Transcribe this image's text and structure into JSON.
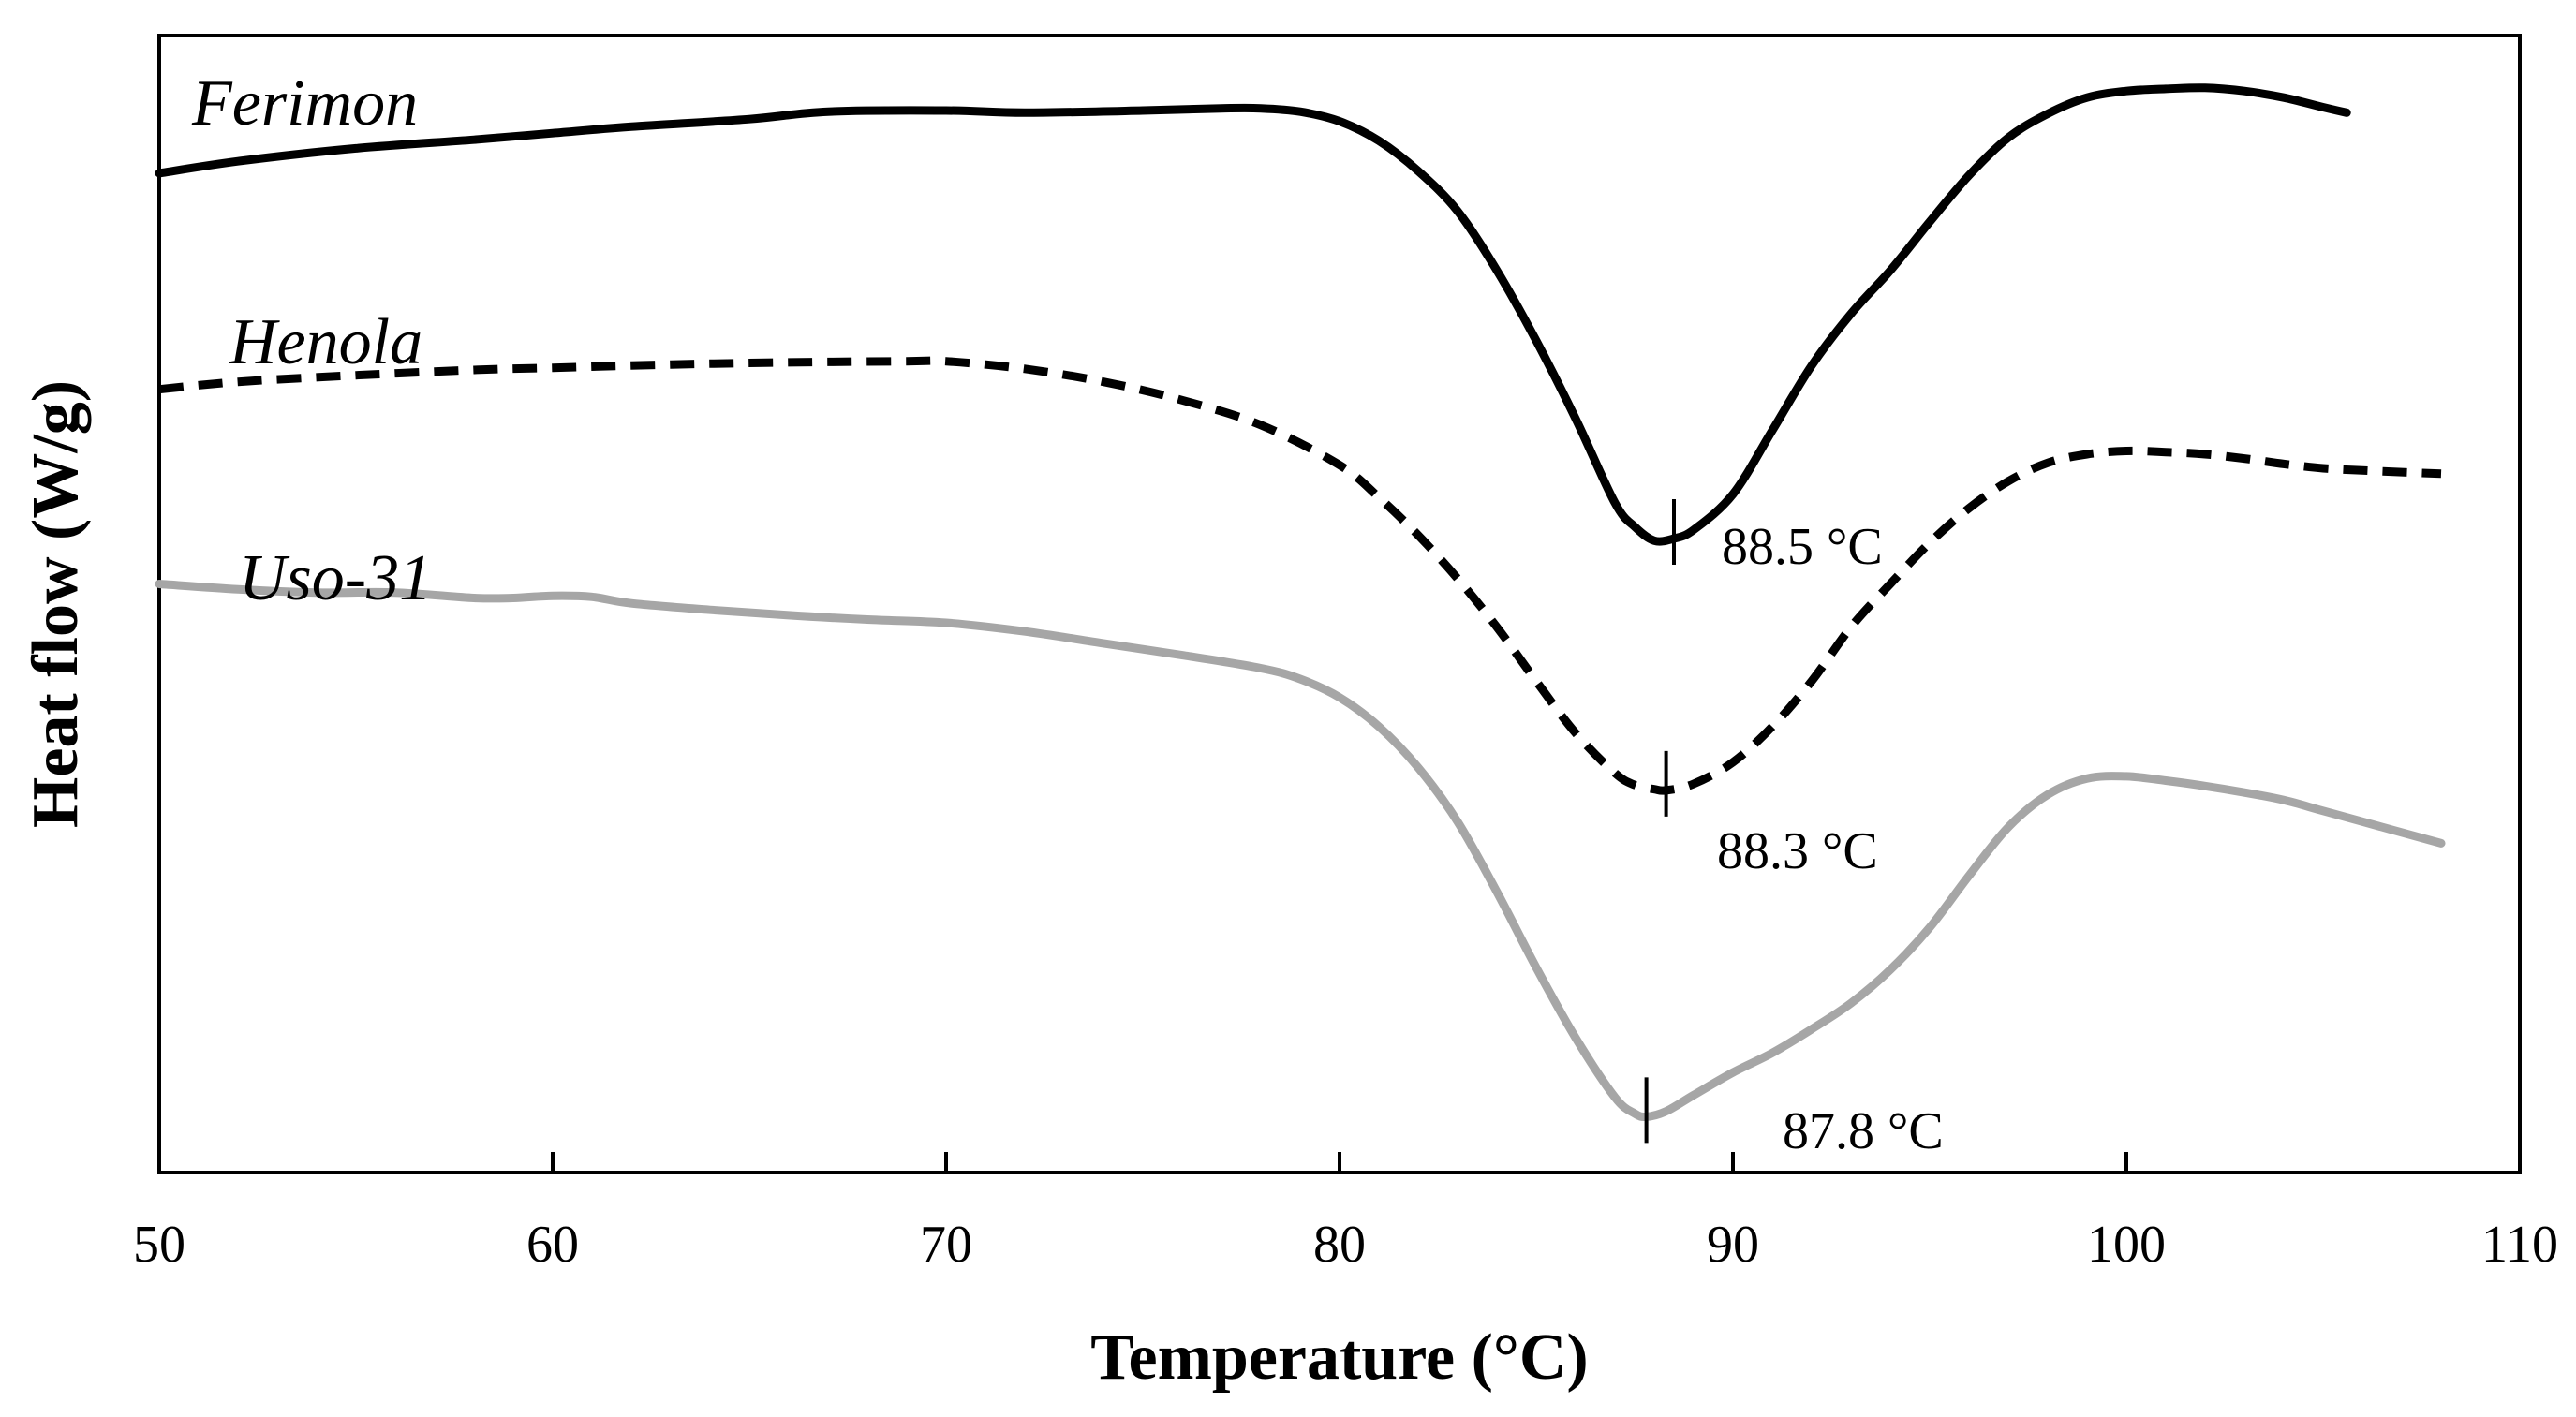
{
  "chart_data": {
    "type": "line",
    "title": "",
    "xlabel": "Temperature (°C)",
    "ylabel": "Heat flow (W/g)",
    "xlim": [
      50,
      110
    ],
    "ylim": [
      0,
      1
    ],
    "xticks": [
      "50",
      "60",
      "70",
      "80",
      "90",
      "100",
      "110"
    ],
    "yticks_shown": false,
    "grid": false,
    "series": [
      {
        "name": "Ferimon",
        "style": "solid",
        "color": "#000000",
        "points": [
          [
            50,
            0.89
          ],
          [
            52,
            0.901
          ],
          [
            55,
            0.913
          ],
          [
            58,
            0.921
          ],
          [
            60,
            0.927
          ],
          [
            62,
            0.933
          ],
          [
            65,
            0.94
          ],
          [
            67,
            0.947
          ],
          [
            70,
            0.948
          ],
          [
            72,
            0.946
          ],
          [
            75,
            0.948
          ],
          [
            77,
            0.95
          ],
          [
            78,
            0.95
          ],
          [
            79,
            0.947
          ],
          [
            80,
            0.938
          ],
          [
            81,
            0.92
          ],
          [
            82,
            0.892
          ],
          [
            83,
            0.855
          ],
          [
            84,
            0.8
          ],
          [
            85,
            0.735
          ],
          [
            86,
            0.663
          ],
          [
            87,
            0.585
          ],
          [
            87.5,
            0.563
          ],
          [
            88,
            0.55
          ],
          [
            88.5,
            0.552
          ],
          [
            89,
            0.56
          ],
          [
            90,
            0.593
          ],
          [
            91,
            0.652
          ],
          [
            92,
            0.712
          ],
          [
            93,
            0.76
          ],
          [
            94,
            0.8
          ],
          [
            95,
            0.845
          ],
          [
            96,
            0.888
          ],
          [
            97,
            0.923
          ],
          [
            98,
            0.945
          ],
          [
            99,
            0.96
          ],
          [
            100,
            0.966
          ],
          [
            101,
            0.968
          ],
          [
            102,
            0.969
          ],
          [
            103,
            0.966
          ],
          [
            104,
            0.96
          ],
          [
            105,
            0.951
          ],
          [
            105.6,
            0.946
          ]
        ]
      },
      {
        "name": "Henola",
        "style": "dashed",
        "color": "#000000",
        "points": [
          [
            50,
            0.69
          ],
          [
            52,
            0.697
          ],
          [
            55,
            0.703
          ],
          [
            58,
            0.708
          ],
          [
            60,
            0.71
          ],
          [
            63,
            0.713
          ],
          [
            66,
            0.715
          ],
          [
            69,
            0.716
          ],
          [
            70,
            0.716
          ],
          [
            72,
            0.709
          ],
          [
            74,
            0.697
          ],
          [
            76,
            0.68
          ],
          [
            78,
            0.657
          ],
          [
            80,
            0.62
          ],
          [
            81,
            0.59
          ],
          [
            82,
            0.555
          ],
          [
            83,
            0.515
          ],
          [
            84,
            0.47
          ],
          [
            85,
            0.42
          ],
          [
            86,
            0.372
          ],
          [
            87,
            0.335
          ],
          [
            87.5,
            0.324
          ],
          [
            88,
            0.32
          ],
          [
            88.3,
            0.319
          ],
          [
            89,
            0.325
          ],
          [
            90,
            0.345
          ],
          [
            91,
            0.378
          ],
          [
            92,
            0.42
          ],
          [
            93,
            0.47
          ],
          [
            94,
            0.51
          ],
          [
            95,
            0.548
          ],
          [
            96,
            0.58
          ],
          [
            97,
            0.605
          ],
          [
            98,
            0.622
          ],
          [
            99,
            0.63
          ],
          [
            100,
            0.633
          ],
          [
            101,
            0.632
          ],
          [
            102,
            0.63
          ],
          [
            103,
            0.626
          ],
          [
            104,
            0.621
          ],
          [
            105,
            0.617
          ],
          [
            106,
            0.615
          ],
          [
            108,
            0.612
          ]
        ]
      },
      {
        "name": "Uso-31",
        "style": "solid",
        "color": "#a6a6a6",
        "points": [
          [
            50,
            0.51
          ],
          [
            52,
            0.505
          ],
          [
            54,
            0.502
          ],
          [
            56,
            0.502
          ],
          [
            58,
            0.497
          ],
          [
            59,
            0.497
          ],
          [
            60,
            0.499
          ],
          [
            61,
            0.498
          ],
          [
            62,
            0.492
          ],
          [
            64,
            0.486
          ],
          [
            66,
            0.481
          ],
          [
            68,
            0.477
          ],
          [
            70,
            0.474
          ],
          [
            72,
            0.466
          ],
          [
            74,
            0.455
          ],
          [
            76,
            0.444
          ],
          [
            78,
            0.432
          ],
          [
            79,
            0.422
          ],
          [
            80,
            0.405
          ],
          [
            81,
            0.378
          ],
          [
            82,
            0.34
          ],
          [
            83,
            0.29
          ],
          [
            84,
            0.225
          ],
          [
            85,
            0.155
          ],
          [
            86,
            0.09
          ],
          [
            87,
            0.035
          ],
          [
            87.5,
            0.02
          ],
          [
            87.8,
            0.017
          ],
          [
            88.3,
            0.022
          ],
          [
            89,
            0.037
          ],
          [
            90,
            0.058
          ],
          [
            91,
            0.076
          ],
          [
            92,
            0.098
          ],
          [
            93,
            0.122
          ],
          [
            94,
            0.153
          ],
          [
            95,
            0.192
          ],
          [
            96,
            0.24
          ],
          [
            97,
            0.285
          ],
          [
            98,
            0.315
          ],
          [
            99,
            0.33
          ],
          [
            100,
            0.332
          ],
          [
            101,
            0.328
          ],
          [
            102,
            0.323
          ],
          [
            103,
            0.317
          ],
          [
            104,
            0.31
          ],
          [
            105,
            0.3
          ],
          [
            106,
            0.29
          ],
          [
            108,
            0.27
          ]
        ]
      }
    ],
    "annotations": [
      {
        "series": "Ferimon",
        "x": 88.5,
        "y": 0.552,
        "text": "88.5 °C"
      },
      {
        "series": "Henola",
        "x": 88.3,
        "y": 0.319,
        "text": "88.3 °C"
      },
      {
        "series": "Uso-31",
        "x": 87.8,
        "y": 0.017,
        "text": "87.8 °C"
      }
    ]
  }
}
